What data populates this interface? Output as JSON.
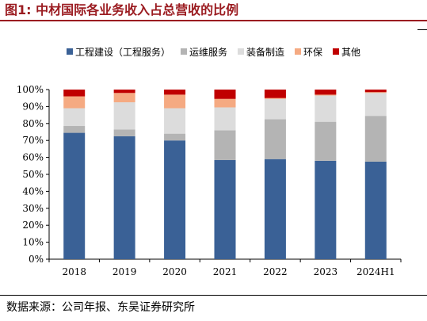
{
  "title": "图1:  中材国际各业务收入占总营收的比例",
  "source": "数据来源：公司年报、东吴证券研究所",
  "chart_data": {
    "type": "bar",
    "stacked": true,
    "categories": [
      "2018",
      "2019",
      "2020",
      "2021",
      "2022",
      "2023",
      "2024H1"
    ],
    "series": [
      {
        "name": "工程建设（工程服务）",
        "color": "#3a6196",
        "values": [
          74.5,
          72.5,
          70,
          58.5,
          59,
          58,
          57.5
        ]
      },
      {
        "name": "运维服务",
        "color": "#b4b4b4",
        "values": [
          4,
          4,
          4,
          17.5,
          23.5,
          23,
          27
        ]
      },
      {
        "name": "装备制造",
        "color": "#dcdcdc",
        "values": [
          10.5,
          16,
          15,
          13.5,
          12,
          15.5,
          13.5
        ]
      },
      {
        "name": "环保",
        "color": "#f5aa82",
        "values": [
          7,
          5.5,
          8,
          5,
          0.5,
          0.5,
          0.5
        ]
      },
      {
        "name": "其他",
        "color": "#c00000",
        "values": [
          4,
          2,
          3,
          5.5,
          5,
          3,
          1.5
        ]
      }
    ],
    "ylim": [
      0,
      100
    ],
    "yticks": [
      "0%",
      "10%",
      "20%",
      "30%",
      "40%",
      "50%",
      "60%",
      "70%",
      "80%",
      "90%",
      "100%"
    ],
    "legend_position": "top",
    "grid": false
  }
}
